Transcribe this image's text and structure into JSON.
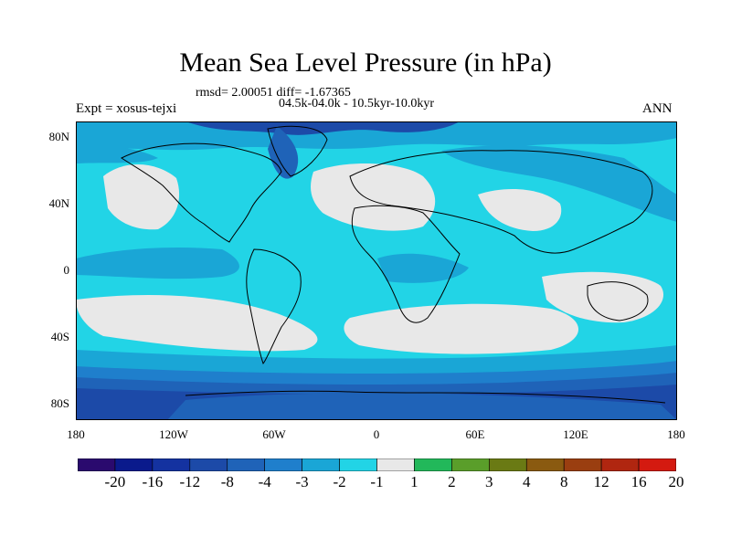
{
  "title": "Mean Sea Level Pressure (in hPa)",
  "stats": {
    "rmsd_diff": "rmsd= 2.00051 diff= -1.67365",
    "period": "04.5k-04.0k - 10.5kyr-10.0kyr"
  },
  "experiment": "Expt = xosus-tejxi",
  "season": "ANN",
  "lat_ticks": [
    "80N",
    "40N",
    "0",
    "40S",
    "80S"
  ],
  "lon_ticks": [
    "180",
    "120W",
    "60W",
    "0",
    "60E",
    "120E",
    "180"
  ],
  "colorbar": {
    "colors": [
      "#2a0a6e",
      "#0a1a8c",
      "#1432a0",
      "#1c4aa8",
      "#1f63b8",
      "#1f7fcc",
      "#1aa6d6",
      "#22d4e6",
      "#e8e8e8",
      "#22b85a",
      "#5a9e2a",
      "#6a7a14",
      "#8a5a10",
      "#9a3e10",
      "#b02610",
      "#d41a10"
    ],
    "labels": [
      "-20",
      "-16",
      "-12",
      "-8",
      "-4",
      "-3",
      "-2",
      "-1",
      "1",
      "2",
      "3",
      "4",
      "8",
      "12",
      "16",
      "20"
    ]
  },
  "chart_data": {
    "type": "heatmap",
    "title": "Mean Sea Level Pressure (in hPa)",
    "variable": "Mean Sea Level Pressure difference",
    "units": "hPa",
    "contour_levels": [
      -20,
      -16,
      -12,
      -8,
      -4,
      -3,
      -2,
      -1,
      1,
      2,
      3,
      4,
      8,
      12,
      16,
      20
    ],
    "xlim": [
      -180,
      180
    ],
    "ylim": [
      -90,
      90
    ],
    "rmsd": 2.00051,
    "diff": -1.67365
  }
}
